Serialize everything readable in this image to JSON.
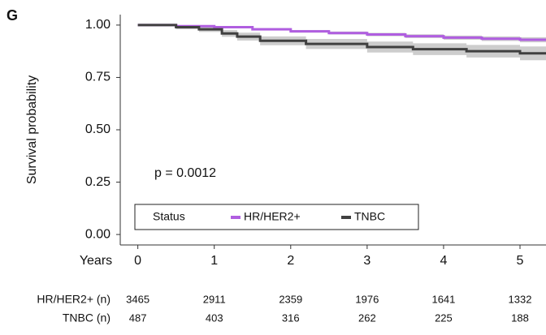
{
  "chart_data": {
    "type": "km",
    "panel_label": "G",
    "ylabel": "Survival probability",
    "xlabel": "Years",
    "annotation": "p = 0.0012",
    "legend_title": "Status",
    "xlim": [
      -0.23,
      5.34
    ],
    "ylim": [
      -0.05,
      1.05
    ],
    "xticks": [
      0,
      1,
      2,
      3,
      4,
      5
    ],
    "yticks": [
      {
        "value": 0,
        "label": "0.00"
      },
      {
        "value": 0.25,
        "label": "0.25"
      },
      {
        "value": 0.5,
        "label": "0.50"
      },
      {
        "value": 0.75,
        "label": "0.75"
      },
      {
        "value": 1,
        "label": "1.00"
      }
    ],
    "series": [
      {
        "name": "HR/HER2+",
        "color": "#b05ee0",
        "x": [
          0,
          0.5,
          1,
          1.5,
          2,
          2.5,
          3,
          3.5,
          4,
          4.5,
          5,
          5.34
        ],
        "values": [
          1,
          0.995,
          0.99,
          0.98,
          0.97,
          0.962,
          0.955,
          0.947,
          0.94,
          0.935,
          0.93,
          0.925
        ],
        "lower": [
          1,
          0.992,
          0.986,
          0.975,
          0.964,
          0.955,
          0.947,
          0.938,
          0.93,
          0.924,
          0.918,
          0.912
        ],
        "upper": [
          1,
          0.998,
          0.994,
          0.985,
          0.976,
          0.969,
          0.963,
          0.956,
          0.95,
          0.946,
          0.942,
          0.938
        ]
      },
      {
        "name": "TNBC",
        "color": "#404040",
        "x": [
          0,
          0.5,
          0.8,
          1.1,
          1.3,
          1.6,
          2.2,
          3.0,
          3.6,
          4.3,
          5.0,
          5.34
        ],
        "values": [
          1,
          0.99,
          0.98,
          0.96,
          0.945,
          0.925,
          0.91,
          0.895,
          0.885,
          0.875,
          0.865,
          0.865
        ],
        "lower": [
          1,
          0.98,
          0.967,
          0.944,
          0.926,
          0.904,
          0.886,
          0.869,
          0.857,
          0.845,
          0.832,
          0.832
        ],
        "upper": [
          1,
          0.999,
          0.993,
          0.976,
          0.964,
          0.946,
          0.934,
          0.921,
          0.913,
          0.905,
          0.898,
          0.898
        ]
      }
    ],
    "risk_table": [
      {
        "label": "HR/HER2+ (n)",
        "counts": [
          3465,
          2911,
          2359,
          1976,
          1641,
          1332
        ]
      },
      {
        "label": "TNBC (n)",
        "counts": [
          487,
          403,
          316,
          262,
          225,
          188
        ]
      }
    ]
  }
}
